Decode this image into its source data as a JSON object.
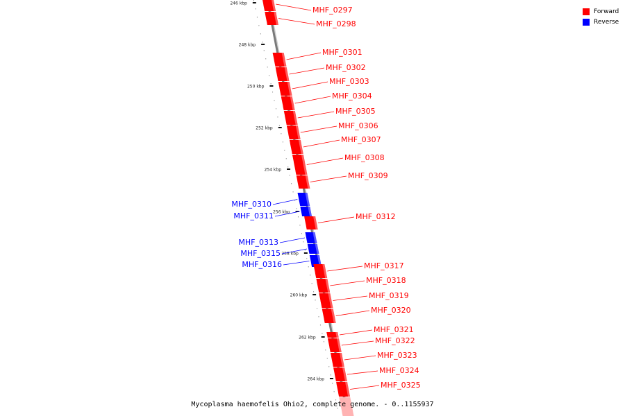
{
  "legend": {
    "forward_label": "Forward",
    "reverse_label": "Reverse",
    "forward_color": "#ff0000",
    "reverse_color": "#0000ff"
  },
  "caption": "Mycoplasma haemofelis Ohio2, complete genome. - 0..1155937",
  "scale_ticks": [
    "246 kbp",
    "248 kbp",
    "250 kbp",
    "252 kbp",
    "254 kbp",
    "256 kbp",
    "258 kbp",
    "260 kbp",
    "262 kbp",
    "264 kbp"
  ],
  "genes": [
    {
      "label": "MHF_0297",
      "strand": "forward"
    },
    {
      "label": "MHF_0298",
      "strand": "forward"
    },
    {
      "label": "MHF_0301",
      "strand": "forward"
    },
    {
      "label": "MHF_0302",
      "strand": "forward"
    },
    {
      "label": "MHF_0303",
      "strand": "forward"
    },
    {
      "label": "MHF_0304",
      "strand": "forward"
    },
    {
      "label": "MHF_0305",
      "strand": "forward"
    },
    {
      "label": "MHF_0306",
      "strand": "forward"
    },
    {
      "label": "MHF_0307",
      "strand": "forward"
    },
    {
      "label": "MHF_0308",
      "strand": "forward"
    },
    {
      "label": "MHF_0309",
      "strand": "forward"
    },
    {
      "label": "MHF_0310",
      "strand": "reverse"
    },
    {
      "label": "MHF_0311",
      "strand": "reverse"
    },
    {
      "label": "MHF_0312",
      "strand": "forward"
    },
    {
      "label": "MHF_0313",
      "strand": "reverse"
    },
    {
      "label": "MHF_0315",
      "strand": "reverse"
    },
    {
      "label": "MHF_0316",
      "strand": "reverse"
    },
    {
      "label": "MHF_0317",
      "strand": "forward"
    },
    {
      "label": "MHF_0318",
      "strand": "forward"
    },
    {
      "label": "MHF_0319",
      "strand": "forward"
    },
    {
      "label": "MHF_0320",
      "strand": "forward"
    },
    {
      "label": "MHF_0321",
      "strand": "forward"
    },
    {
      "label": "MHF_0322",
      "strand": "forward"
    },
    {
      "label": "MHF_0323",
      "strand": "forward"
    },
    {
      "label": "MHF_0324",
      "strand": "forward"
    },
    {
      "label": "MHF_0325",
      "strand": "forward"
    }
  ]
}
